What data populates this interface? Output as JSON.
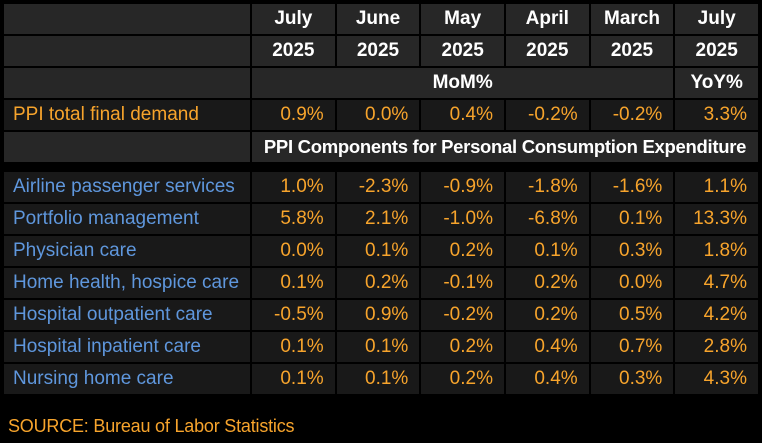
{
  "chart_data": {
    "type": "table",
    "title": "",
    "columns": [
      {
        "month": "July",
        "year": "2025",
        "measure": "MoM%"
      },
      {
        "month": "June",
        "year": "2025",
        "measure": "MoM%"
      },
      {
        "month": "May",
        "year": "2025",
        "measure": "MoM%"
      },
      {
        "month": "April",
        "year": "2025",
        "measure": "MoM%"
      },
      {
        "month": "March",
        "year": "2025",
        "measure": "MoM%"
      },
      {
        "month": "July",
        "year": "2025",
        "measure": "YoY%"
      }
    ],
    "measure_mom_label": "MoM%",
    "measure_yoy_label": "YoY%",
    "total_row": {
      "label": "PPI total final demand",
      "values": [
        "0.9%",
        "0.0%",
        "0.4%",
        "-0.2%",
        "-0.2%",
        "3.3%"
      ]
    },
    "section_title": "PPI Components for Personal Consumption Expenditure",
    "component_rows": [
      {
        "label": "Airline passenger services",
        "values": [
          "1.0%",
          "-2.3%",
          "-0.9%",
          "-1.8%",
          "-1.6%",
          "1.1%"
        ]
      },
      {
        "label": "Portfolio management",
        "values": [
          "5.8%",
          "2.1%",
          "-1.0%",
          "-6.8%",
          "0.1%",
          "13.3%"
        ]
      },
      {
        "label": "Physician care",
        "values": [
          "0.0%",
          "0.1%",
          "0.2%",
          "0.1%",
          "0.3%",
          "1.8%"
        ]
      },
      {
        "label": "Home health, hospice care",
        "values": [
          "0.1%",
          "0.2%",
          "-0.1%",
          "0.2%",
          "0.0%",
          "4.7%"
        ]
      },
      {
        "label": "Hospital outpatient care",
        "values": [
          "-0.5%",
          "0.9%",
          "-0.2%",
          "0.2%",
          "0.5%",
          "4.2%"
        ]
      },
      {
        "label": "Hospital inpatient care",
        "values": [
          "0.1%",
          "0.1%",
          "0.2%",
          "0.4%",
          "0.7%",
          "2.8%"
        ]
      },
      {
        "label": "Nursing home care",
        "values": [
          "0.1%",
          "0.1%",
          "0.2%",
          "0.4%",
          "0.3%",
          "4.3%"
        ]
      }
    ],
    "layout": {
      "grid": "on",
      "header_bg": "#272727",
      "data_bg": "#191919",
      "page_bg": "#000000",
      "header_text_color": "#ffffff",
      "value_color": "#f7a42c",
      "label_color": "#5f97dd"
    }
  },
  "footer": {
    "source": "SOURCE: Bureau of Labor Statistics"
  }
}
